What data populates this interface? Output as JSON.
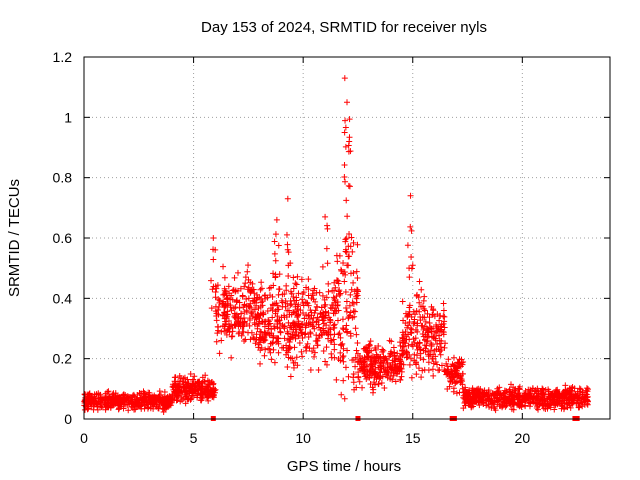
{
  "chart_data": {
    "type": "scatter",
    "title": "Day 153 of 2024, SRMTID for receiver nyls",
    "xlabel": "GPS time / hours",
    "ylabel": "SRMTID / TECUs",
    "xlim": [
      0,
      24
    ],
    "ylim": [
      0,
      1.2
    ],
    "xticks": [
      0,
      5,
      10,
      15,
      20
    ],
    "xtick_labels": [
      "0",
      "5",
      "10",
      "15",
      "20"
    ],
    "yticks": [
      0,
      0.2,
      0.4,
      0.6,
      0.8,
      1.0,
      1.2
    ],
    "ytick_labels": [
      "0",
      "0.2",
      "0.4",
      "0.6",
      "0.8",
      "1",
      "1.2"
    ],
    "grid": true,
    "marker": "+",
    "series": [
      {
        "name": "SRMTID",
        "color": "#ff0000",
        "note": "Dense cloud of + markers; values summarized as piecewise activity level (hours, typical TECU, spread).",
        "envelope": [
          {
            "x": [
              0.0,
              4.0
            ],
            "typical": 0.06,
            "spread": 0.04
          },
          {
            "x": [
              4.0,
              5.5
            ],
            "typical": 0.1,
            "spread": 0.06
          },
          {
            "x": [
              5.5,
              6.0
            ],
            "typical": 0.1,
            "spread": 0.05
          },
          {
            "x": [
              6.0,
              8.0
            ],
            "typical": 0.35,
            "spread": 0.18
          },
          {
            "x": [
              8.0,
              11.5
            ],
            "typical": 0.32,
            "spread": 0.2
          },
          {
            "x": [
              11.5,
              12.5
            ],
            "typical": 0.35,
            "spread": 0.4
          },
          {
            "x": [
              12.5,
              14.5
            ],
            "typical": 0.18,
            "spread": 0.1
          },
          {
            "x": [
              14.5,
              16.5
            ],
            "typical": 0.28,
            "spread": 0.2
          },
          {
            "x": [
              16.5,
              17.3
            ],
            "typical": 0.15,
            "spread": 0.08
          },
          {
            "x": [
              17.3,
              23.0
            ],
            "typical": 0.07,
            "spread": 0.05
          }
        ],
        "peaks": [
          {
            "x": 11.9,
            "y": 1.13
          },
          {
            "x": 12.0,
            "y": 1.05
          },
          {
            "x": 12.1,
            "y": 0.92
          },
          {
            "x": 14.9,
            "y": 0.74
          },
          {
            "x": 9.3,
            "y": 0.73
          },
          {
            "x": 5.9,
            "y": 0.6
          },
          {
            "x": 11.0,
            "y": 0.67
          },
          {
            "x": 8.8,
            "y": 0.66
          }
        ],
        "gap_markers_x": [
          5.9,
          12.5,
          16.8,
          16.9,
          22.4,
          22.5
        ]
      }
    ]
  }
}
